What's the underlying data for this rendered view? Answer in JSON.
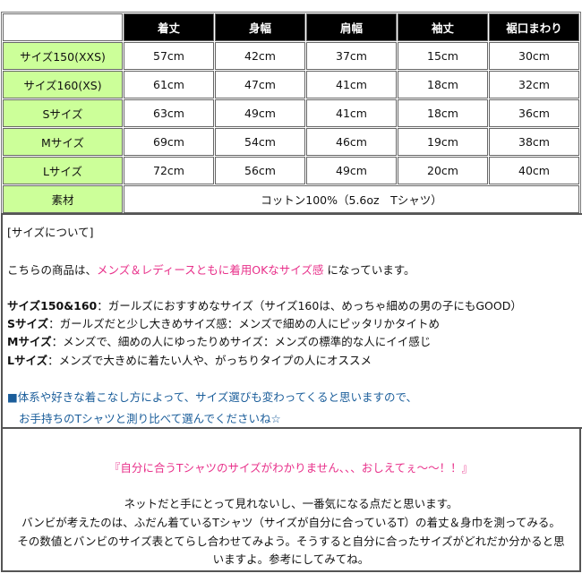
{
  "table": {
    "headers": [
      "着丈",
      "身幅",
      "肩幅",
      "袖丈",
      "裾口まわり"
    ],
    "rows": [
      {
        "label": "サイズ150(XXS)",
        "values": [
          "57cm",
          "42cm",
          "37cm",
          "15cm",
          "30cm"
        ]
      },
      {
        "label": "サイズ160(XS)",
        "values": [
          "61cm",
          "47cm",
          "41cm",
          "18cm",
          "32cm"
        ]
      },
      {
        "label": "Sサイズ",
        "values": [
          "63cm",
          "49cm",
          "41cm",
          "18cm",
          "36cm"
        ]
      },
      {
        "label": "Mサイズ",
        "values": [
          "69cm",
          "54cm",
          "46cm",
          "19cm",
          "38cm"
        ]
      },
      {
        "label": "Lサイズ",
        "values": [
          "72cm",
          "56cm",
          "49cm",
          "20cm",
          "40cm"
        ]
      }
    ],
    "material_label": "素材",
    "material_value": "コットン100%（5.6oz　Tシャツ）"
  },
  "about": {
    "heading": "[サイズについて]",
    "intro_pre": "こちらの商品は、",
    "intro_highlight": "メンズ＆レディースともに着用OKなサイズ感",
    "intro_post": " になっています。",
    "sizes": [
      {
        "name": "サイズ150&160",
        "desc": "：ガールズにおすすめなサイズ（サイズ160は、めっちゃ細めの男の子にもGOOD）"
      },
      {
        "name": "Sサイズ",
        "desc": "：ガールズだと少し大きめサイズ感：メンズで細めの人にピッタリかタイトめ"
      },
      {
        "name": "Mサイズ",
        "desc": "：メンズで、細めの人にゆったりめサイズ：メンズの標準的な人にイイ感じ"
      },
      {
        "name": "Lサイズ",
        "desc": "：メンズで大きめに着たい人や、がっちりタイプの人にオススメ"
      }
    ],
    "note1": "■体系や好きな着こなし方によって、サイズ選びも変わってくると思いますので、",
    "note2": "お手持ちのTシャツと測り比べて選んでくださいね☆"
  },
  "faq": {
    "question": "『自分に合うTシャツのサイズがわかりません、、、おしえてぇ〜〜！！』",
    "lines": [
      "ネットだと手にとって見れないし、一番気になる点だと思います。",
      "バンビが考えたのは、ふだん着ているTシャツ（サイズが自分に合っているT）の着丈＆身巾を測ってみる。",
      "その数値とバンビのサイズ表とてらし合わせてみよう。そうすると自分に合ったサイズがどれだか分かると思",
      "いますよ。参考にしてみてね。"
    ]
  },
  "colors": {
    "header_bg": "#000000",
    "label_bg": "#ccff99",
    "highlight": "#e8308a",
    "note": "#1a5d9a"
  }
}
